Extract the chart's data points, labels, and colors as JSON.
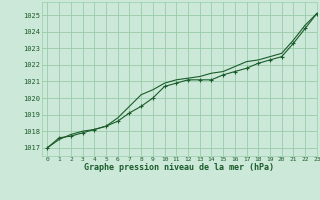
{
  "title": "Graphe pression niveau de la mer (hPa)",
  "bg_color": "#cce8d8",
  "plot_bg_color": "#cce8d8",
  "grid_color": "#99ccaa",
  "line_color": "#1a5c2a",
  "xlim": [
    -0.5,
    23
  ],
  "ylim": [
    1016.5,
    1025.8
  ],
  "xticks": [
    0,
    1,
    2,
    3,
    4,
    5,
    6,
    7,
    8,
    9,
    10,
    11,
    12,
    13,
    14,
    15,
    16,
    17,
    18,
    19,
    20,
    21,
    22,
    23
  ],
  "yticks": [
    1017,
    1018,
    1019,
    1020,
    1021,
    1022,
    1023,
    1024,
    1025
  ],
  "line1_x": [
    0,
    1,
    2,
    3,
    4,
    5,
    6,
    7,
    8,
    9,
    10,
    11,
    12,
    13,
    14,
    15,
    16,
    17,
    18,
    19,
    20,
    21,
    22,
    23
  ],
  "line1_y": [
    1017.0,
    1017.6,
    1017.7,
    1017.9,
    1018.1,
    1018.3,
    1018.6,
    1019.1,
    1019.5,
    1020.0,
    1020.7,
    1020.9,
    1021.1,
    1021.1,
    1021.1,
    1021.4,
    1021.6,
    1021.8,
    1022.1,
    1022.3,
    1022.5,
    1023.3,
    1024.2,
    1025.1
  ],
  "line2_x": [
    0,
    1,
    2,
    3,
    4,
    5,
    6,
    7,
    8,
    9,
    10,
    11,
    12,
    13,
    14,
    15,
    16,
    17,
    18,
    19,
    20,
    21,
    22,
    23
  ],
  "line2_y": [
    1017.0,
    1017.5,
    1017.8,
    1018.0,
    1018.1,
    1018.3,
    1018.8,
    1019.5,
    1020.2,
    1020.5,
    1020.9,
    1021.1,
    1021.2,
    1021.3,
    1021.5,
    1021.6,
    1021.9,
    1022.2,
    1022.3,
    1022.5,
    1022.7,
    1023.5,
    1024.4,
    1025.1
  ]
}
